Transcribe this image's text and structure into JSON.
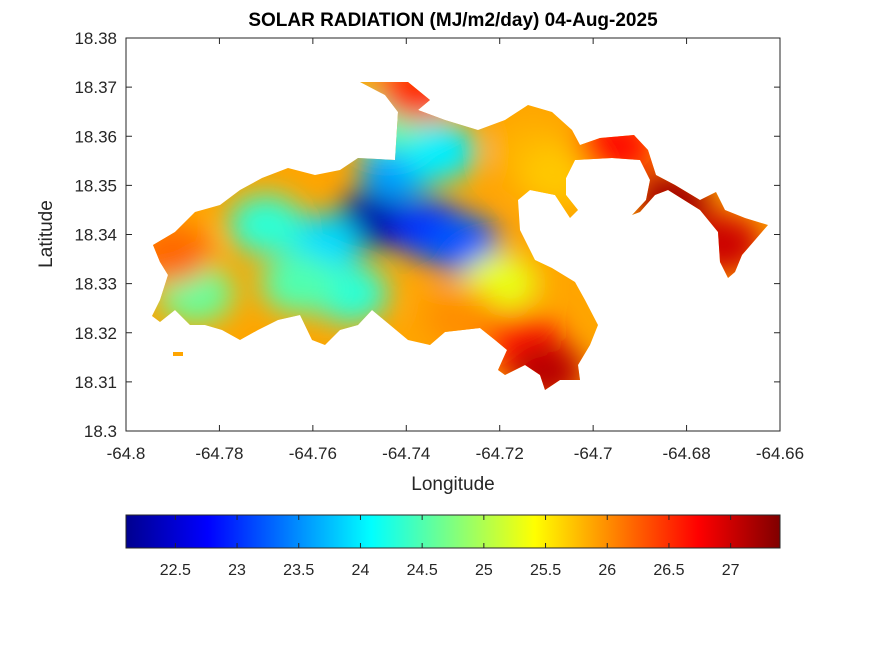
{
  "chart_data": {
    "type": "heatmap",
    "title": "SOLAR RADIATION (MJ/m2/day) 04-Aug-2025",
    "xlabel": "Longitude",
    "ylabel": "Latitude",
    "xlim": [
      -64.8,
      -64.66
    ],
    "ylim": [
      18.3,
      18.38
    ],
    "x_ticks": [
      "-64.8",
      "-64.78",
      "-64.76",
      "-64.74",
      "-64.72",
      "-64.7",
      "-64.68",
      "-64.66"
    ],
    "y_ticks": [
      "18.3",
      "18.31",
      "18.32",
      "18.33",
      "18.34",
      "18.35",
      "18.36",
      "18.37",
      "18.38"
    ],
    "colorbar": {
      "colormap": "jet",
      "range": [
        22.1,
        27.4
      ],
      "ticks": [
        "22.5",
        "23",
        "23.5",
        "24",
        "24.5",
        "25",
        "25.5",
        "26",
        "26.5",
        "27"
      ]
    },
    "regions": [
      {
        "lon": -64.747,
        "lat": 18.343,
        "value": 22.3
      },
      {
        "lon": -64.735,
        "lat": 18.341,
        "value": 23.0
      },
      {
        "lon": -64.728,
        "lat": 18.338,
        "value": 23.2
      },
      {
        "lon": -64.742,
        "lat": 18.353,
        "value": 23.6
      },
      {
        "lon": -64.758,
        "lat": 18.338,
        "value": 23.9
      },
      {
        "lon": -64.733,
        "lat": 18.357,
        "value": 24.0
      },
      {
        "lon": -64.77,
        "lat": 18.342,
        "value": 24.3
      },
      {
        "lon": -64.752,
        "lat": 18.328,
        "value": 24.3
      },
      {
        "lon": -64.785,
        "lat": 18.328,
        "value": 24.6
      },
      {
        "lon": -64.763,
        "lat": 18.33,
        "value": 24.5
      },
      {
        "lon": -64.744,
        "lat": 18.363,
        "value": 24.5
      },
      {
        "lon": -64.72,
        "lat": 18.33,
        "value": 25.3
      },
      {
        "lon": -64.713,
        "lat": 18.357,
        "value": 25.8
      },
      {
        "lon": -64.728,
        "lat": 18.323,
        "value": 26.0
      },
      {
        "lon": -64.708,
        "lat": 18.352,
        "value": 25.7
      },
      {
        "lon": -64.79,
        "lat": 18.336,
        "value": 26.2
      },
      {
        "lon": -64.738,
        "lat": 18.369,
        "value": 26.5
      },
      {
        "lon": -64.715,
        "lat": 18.318,
        "value": 26.6
      },
      {
        "lon": -64.71,
        "lat": 18.312,
        "value": 27.1
      },
      {
        "lon": -64.695,
        "lat": 18.358,
        "value": 26.7
      },
      {
        "lon": -64.683,
        "lat": 18.347,
        "value": 27.2
      },
      {
        "lon": -64.672,
        "lat": 18.338,
        "value": 27.0
      }
    ]
  }
}
